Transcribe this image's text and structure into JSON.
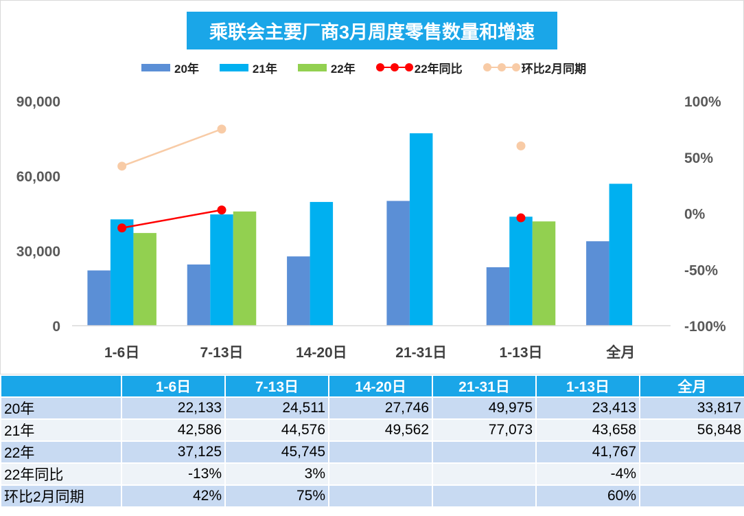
{
  "title": "乘联会主要厂商3月周度零售数量和增速",
  "chart_data": {
    "type": "bar",
    "title": "乘联会主要厂商3月周度零售数量和增速",
    "categories": [
      "1-6日",
      "7-13日",
      "14-20日",
      "21-31日",
      "1-13日",
      "全月"
    ],
    "series": [
      {
        "name": "20年",
        "kind": "bar",
        "axis": "left",
        "color": "#5b8fd6",
        "values": [
          22133,
          24511,
          27746,
          49975,
          23413,
          33817
        ]
      },
      {
        "name": "21年",
        "kind": "bar",
        "axis": "left",
        "color": "#00b0f0",
        "values": [
          42586,
          44576,
          49562,
          77073,
          43658,
          56848
        ]
      },
      {
        "name": "22年",
        "kind": "bar",
        "axis": "left",
        "color": "#92d050",
        "values": [
          37125,
          45745,
          null,
          null,
          41767,
          null
        ]
      },
      {
        "name": "22年同比",
        "kind": "line",
        "axis": "right",
        "color": "#ff0000",
        "values": [
          -13,
          3,
          null,
          null,
          -4,
          null
        ]
      },
      {
        "name": "环比2月同期",
        "kind": "line",
        "axis": "right",
        "color": "#f8cba6",
        "values": [
          42,
          75,
          null,
          null,
          60,
          null
        ]
      }
    ],
    "y_left": {
      "ylim": [
        0,
        90000
      ],
      "ticks": [
        0,
        30000,
        60000,
        90000
      ],
      "tick_labels": [
        "0",
        "30,000",
        "60,000",
        "90,000"
      ]
    },
    "y_right": {
      "ylim": [
        -100,
        100
      ],
      "ticks": [
        -100,
        -50,
        0,
        50,
        100
      ],
      "tick_labels": [
        "-100%",
        "-50%",
        "0%",
        "50%",
        "100%"
      ],
      "unit": "%"
    },
    "legend": "top",
    "grid": false
  },
  "table": {
    "headers": [
      "",
      "1-6日",
      "7-13日",
      "14-20日",
      "21-31日",
      "1-13日",
      "全月"
    ],
    "rows": [
      {
        "label": "20年",
        "cells": [
          "22,133",
          "24,511",
          "27,746",
          "49,975",
          "23,413",
          "33,817"
        ]
      },
      {
        "label": "21年",
        "cells": [
          "42,586",
          "44,576",
          "49,562",
          "77,073",
          "43,658",
          "56,848"
        ]
      },
      {
        "label": "22年",
        "cells": [
          "37,125",
          "45,745",
          "",
          "",
          "41,767",
          ""
        ]
      },
      {
        "label": "22年同比",
        "cells": [
          "-13%",
          "3%",
          "",
          "",
          "-4%",
          ""
        ]
      },
      {
        "label": "环比2月同期",
        "cells": [
          "42%",
          "75%",
          "",
          "",
          "60%",
          ""
        ]
      }
    ]
  }
}
